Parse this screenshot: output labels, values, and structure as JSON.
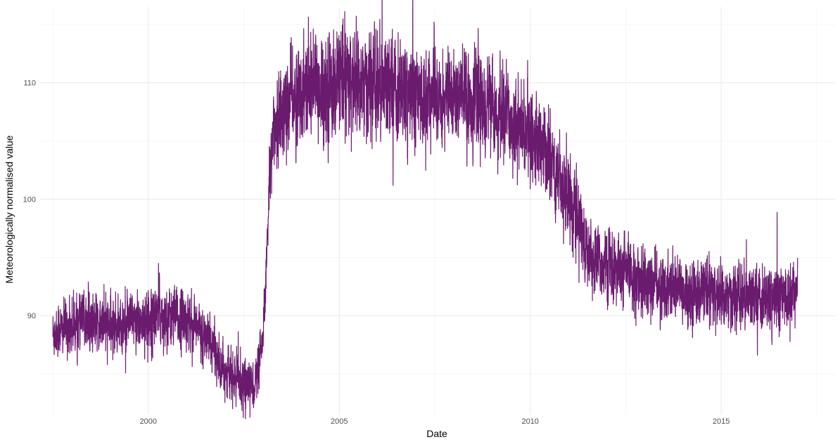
{
  "chart_data": {
    "type": "line",
    "title": "",
    "xlabel": "Date",
    "ylabel": "Meteorologically normalised value",
    "x_ticks": [
      "2000",
      "2005",
      "2010",
      "2015"
    ],
    "y_ticks": [
      90,
      100,
      110
    ],
    "xlim": [
      "1997-03-01",
      "2018-01-01"
    ],
    "ylim": [
      81.5,
      116.5
    ],
    "grid": true,
    "legend": "none",
    "line_color": "#6A1B6E",
    "series": [
      {
        "x": [
          "1997-07-01",
          "1997-10-01",
          "1998-01-01",
          "1998-04-01",
          "1998-07-01",
          "1998-10-01",
          "1999-01-01",
          "1999-04-01",
          "1999-07-01",
          "1999-10-01",
          "2000-01-01",
          "2000-04-01",
          "2000-07-01",
          "2000-10-01",
          "2001-01-01",
          "2001-04-01",
          "2001-07-01",
          "2001-10-01",
          "2002-01-01",
          "2002-04-01",
          "2002-07-01",
          "2002-10-01",
          "2002-11-15",
          "2003-01-01",
          "2003-02-01",
          "2003-03-01",
          "2003-04-01",
          "2003-07-01",
          "2003-10-01",
          "2004-01-01",
          "2004-04-01",
          "2004-07-01",
          "2004-10-01",
          "2005-01-01",
          "2005-04-01",
          "2005-07-01",
          "2005-10-01",
          "2006-01-01",
          "2006-04-01",
          "2006-07-01",
          "2006-10-01",
          "2007-01-01",
          "2007-04-01",
          "2007-07-01",
          "2007-10-01",
          "2008-01-01",
          "2008-04-01",
          "2008-07-01",
          "2008-10-01",
          "2009-01-01",
          "2009-04-01",
          "2009-07-01",
          "2009-10-01",
          "2010-01-01",
          "2010-04-01",
          "2010-07-01",
          "2010-10-01",
          "2011-01-01",
          "2011-04-01",
          "2011-07-01",
          "2011-10-01",
          "2012-01-01",
          "2012-04-01",
          "2012-07-01",
          "2012-10-01",
          "2013-01-01",
          "2013-04-01",
          "2013-07-01",
          "2013-10-01",
          "2014-01-01",
          "2014-04-01",
          "2014-07-01",
          "2014-10-01",
          "2015-01-01",
          "2015-04-01",
          "2015-07-01",
          "2015-10-01",
          "2016-01-01",
          "2016-04-01",
          "2016-07-01",
          "2016-10-01",
          "2017-01-01"
        ],
        "y": [
          88.5,
          88.8,
          89.2,
          89.6,
          89.5,
          89.3,
          89.0,
          89.0,
          89.3,
          89.4,
          89.8,
          90.2,
          90.0,
          89.7,
          89.6,
          89.0,
          88.2,
          87.0,
          85.4,
          84.6,
          84.2,
          84.0,
          85.0,
          87.6,
          93.0,
          102.0,
          105.5,
          107.5,
          108.5,
          109.2,
          109.6,
          109.8,
          109.9,
          110.0,
          110.1,
          110.0,
          109.9,
          109.7,
          109.6,
          109.4,
          109.2,
          109.0,
          108.8,
          108.7,
          108.6,
          108.8,
          108.7,
          108.5,
          108.2,
          107.6,
          107.0,
          106.6,
          106.1,
          105.6,
          104.6,
          103.6,
          102.0,
          100.4,
          98.4,
          95.5,
          94.6,
          94.2,
          94.0,
          93.6,
          93.2,
          92.9,
          92.6,
          92.4,
          92.3,
          92.2,
          92.1,
          92.0,
          91.9,
          91.7,
          91.6,
          91.6,
          91.5,
          91.5,
          91.5,
          91.6,
          91.8,
          92.2
        ],
        "noise": [
          1.1,
          1.1,
          1.1,
          1.1,
          1.1,
          1.1,
          1.1,
          1.1,
          1.1,
          1.1,
          1.2,
          1.2,
          1.2,
          1.2,
          1.1,
          1.1,
          1.1,
          1.0,
          1.0,
          1.0,
          1.0,
          1.0,
          1.0,
          1.0,
          1.0,
          1.2,
          1.5,
          1.8,
          2.0,
          2.0,
          2.2,
          2.2,
          2.2,
          2.2,
          2.2,
          2.2,
          2.2,
          2.2,
          2.2,
          2.2,
          2.0,
          2.0,
          2.0,
          2.0,
          2.0,
          2.0,
          2.0,
          2.0,
          2.0,
          1.8,
          1.8,
          1.8,
          1.8,
          1.8,
          1.8,
          1.8,
          1.8,
          1.8,
          1.6,
          1.4,
          1.4,
          1.4,
          1.4,
          1.4,
          1.4,
          1.3,
          1.3,
          1.3,
          1.3,
          1.3,
          1.3,
          1.3,
          1.3,
          1.3,
          1.3,
          1.3,
          1.3,
          1.3,
          1.3,
          1.3,
          1.3,
          1.3
        ]
      }
    ]
  }
}
